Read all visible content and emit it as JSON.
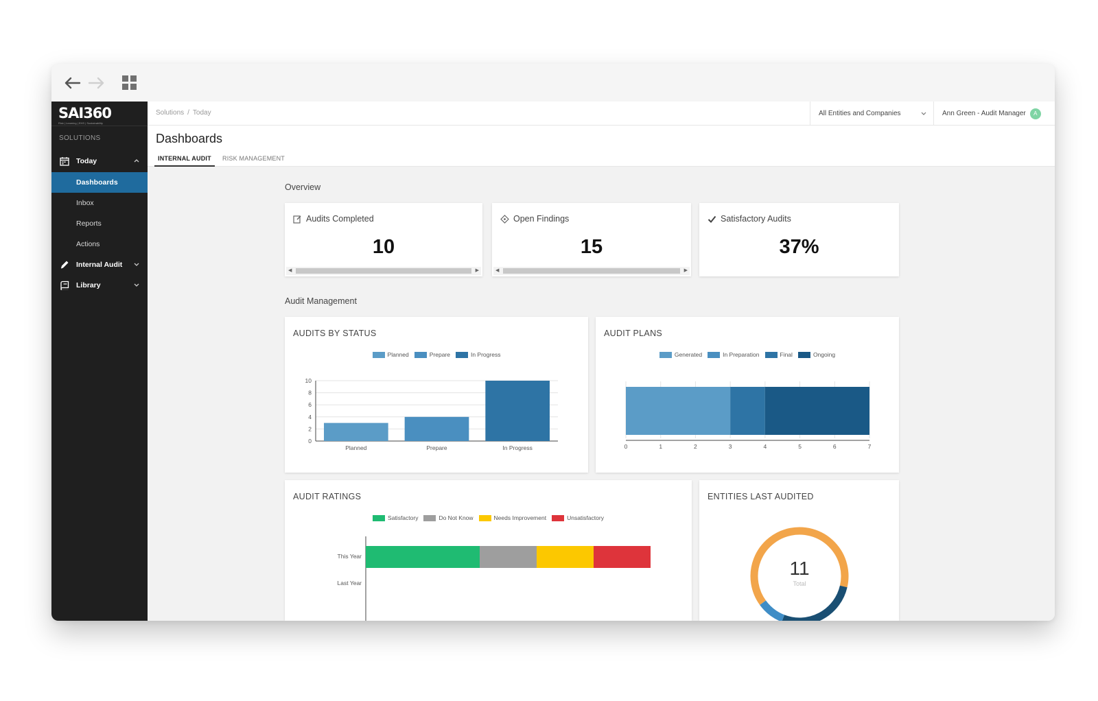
{
  "app": {
    "logo_text": "SAI360",
    "logo_subtitle": "Risk | Learning | EHS | Sustainability"
  },
  "sidebar": {
    "heading": "SOLUTIONS",
    "today": {
      "label": "Today",
      "items": [
        "Dashboards",
        "Inbox",
        "Reports",
        "Actions"
      ],
      "active": "Dashboards"
    },
    "internal_audit": {
      "label": "Internal Audit"
    },
    "library": {
      "label": "Library"
    }
  },
  "topbar": {
    "breadcrumb": [
      "Solutions",
      "Today"
    ],
    "entity_select": "All Entities and Companies",
    "user": "Ann Green - Audit Manager",
    "avatar_initial": "A"
  },
  "page": {
    "title": "Dashboards",
    "tabs": [
      "INTERNAL AUDIT",
      "RISK MANAGEMENT"
    ],
    "active_tab": "INTERNAL AUDIT"
  },
  "overview": {
    "label": "Overview",
    "kpis": [
      {
        "label": "Audits Completed",
        "value": "10",
        "icon": "edit-icon"
      },
      {
        "label": "Open Findings",
        "value": "15",
        "icon": "diamond-icon"
      },
      {
        "label": "Satisfactory Audits",
        "value": "37%",
        "icon": "check-icon"
      }
    ]
  },
  "audit_management": {
    "label": "Audit Management"
  },
  "colors": {
    "planned": "#5b9cc7",
    "prepare": "#4a8fc0",
    "in_progress": "#2e74a5",
    "generated": "#5b9cc7",
    "in_preparation": "#4a8fc0",
    "final": "#2e74a5",
    "ongoing": "#1a5986",
    "satisfactory": "#1fbb72",
    "do_not_know": "#9e9e9e",
    "needs_improvement": "#fcc800",
    "unsatisfactory": "#de343b",
    "donut_orange": "#f2a54a",
    "donut_blue": "#1a4f73",
    "donut_light": "#3f8dc6"
  },
  "chart_data": [
    {
      "id": "audits_by_status",
      "type": "bar",
      "title": "AUDITS BY STATUS",
      "categories": [
        "Planned",
        "Prepare",
        "In Progress"
      ],
      "values": [
        3,
        4,
        10
      ],
      "legend": [
        "Planned",
        "Prepare",
        "In Progress"
      ],
      "yticks": [
        "0",
        "2",
        "4",
        "6",
        "8",
        "10"
      ],
      "ylim": [
        0,
        10
      ],
      "grid": true,
      "legend_position": "top"
    },
    {
      "id": "audit_plans",
      "type": "bar",
      "orientation": "horizontal-stacked",
      "title": "AUDIT PLANS",
      "series": [
        {
          "name": "Generated",
          "values": [
            3
          ]
        },
        {
          "name": "In Preparation",
          "values": [
            0
          ]
        },
        {
          "name": "Final",
          "values": [
            1
          ]
        },
        {
          "name": "Ongoing",
          "values": [
            3
          ]
        }
      ],
      "xticks": [
        "0",
        "1",
        "2",
        "3",
        "4",
        "5",
        "6",
        "7"
      ],
      "xlim": [
        0,
        7
      ],
      "legend_position": "top"
    },
    {
      "id": "audit_ratings",
      "type": "bar",
      "orientation": "horizontal-stacked",
      "title": "AUDIT RATINGS",
      "categories": [
        "This Year",
        "Last Year"
      ],
      "series": [
        {
          "name": "Satisfactory",
          "values": [
            4,
            0
          ]
        },
        {
          "name": "Do Not Know",
          "values": [
            2,
            0
          ]
        },
        {
          "name": "Needs Improvement",
          "values": [
            2,
            0
          ]
        },
        {
          "name": "Unsatisfactory",
          "values": [
            2,
            0
          ]
        }
      ],
      "legend_position": "top"
    },
    {
      "id": "entities_last_audited",
      "type": "pie",
      "title": "ENTITIES LAST AUDITED",
      "total_value": "11",
      "total_label": "Total",
      "values": [
        7,
        3,
        1
      ]
    }
  ]
}
